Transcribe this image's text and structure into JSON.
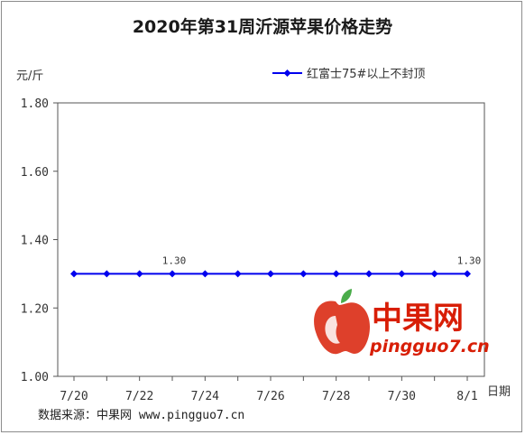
{
  "chart_data": {
    "type": "line",
    "title": "2020年第31周沂源苹果价格走势",
    "ylabel": "元/斤",
    "xlabel": "日期",
    "ylim": [
      1.0,
      1.8
    ],
    "yticks": [
      "1.00",
      "1.20",
      "1.40",
      "1.60",
      "1.80"
    ],
    "x": [
      "7/20",
      "7/21",
      "7/22",
      "7/23",
      "7/24",
      "7/25",
      "7/26",
      "7/27",
      "7/28",
      "7/29",
      "7/30",
      "7/31",
      "8/1"
    ],
    "xtick_labels": [
      "7/20",
      "7/22",
      "7/24",
      "7/26",
      "7/28",
      "7/30",
      "8/1"
    ],
    "series": [
      {
        "name": "红富士75#以上不封顶",
        "values": [
          1.3,
          1.3,
          1.3,
          1.3,
          1.3,
          1.3,
          1.3,
          1.3,
          1.3,
          1.3,
          1.3,
          1.3,
          1.3
        ],
        "color": "#0000ee"
      }
    ],
    "data_labels": [
      {
        "index": 3,
        "text": "1.30"
      },
      {
        "index": 12,
        "text": "1.30"
      }
    ],
    "grid": false,
    "legend": "top-right"
  },
  "footer": {
    "source": "数据来源：中果网 www.pingguo7.cn"
  },
  "watermark": {
    "name": "中果网",
    "url": "pingguo7.cn",
    "icon": "apple-logo-icon",
    "color": "#d81e06"
  }
}
